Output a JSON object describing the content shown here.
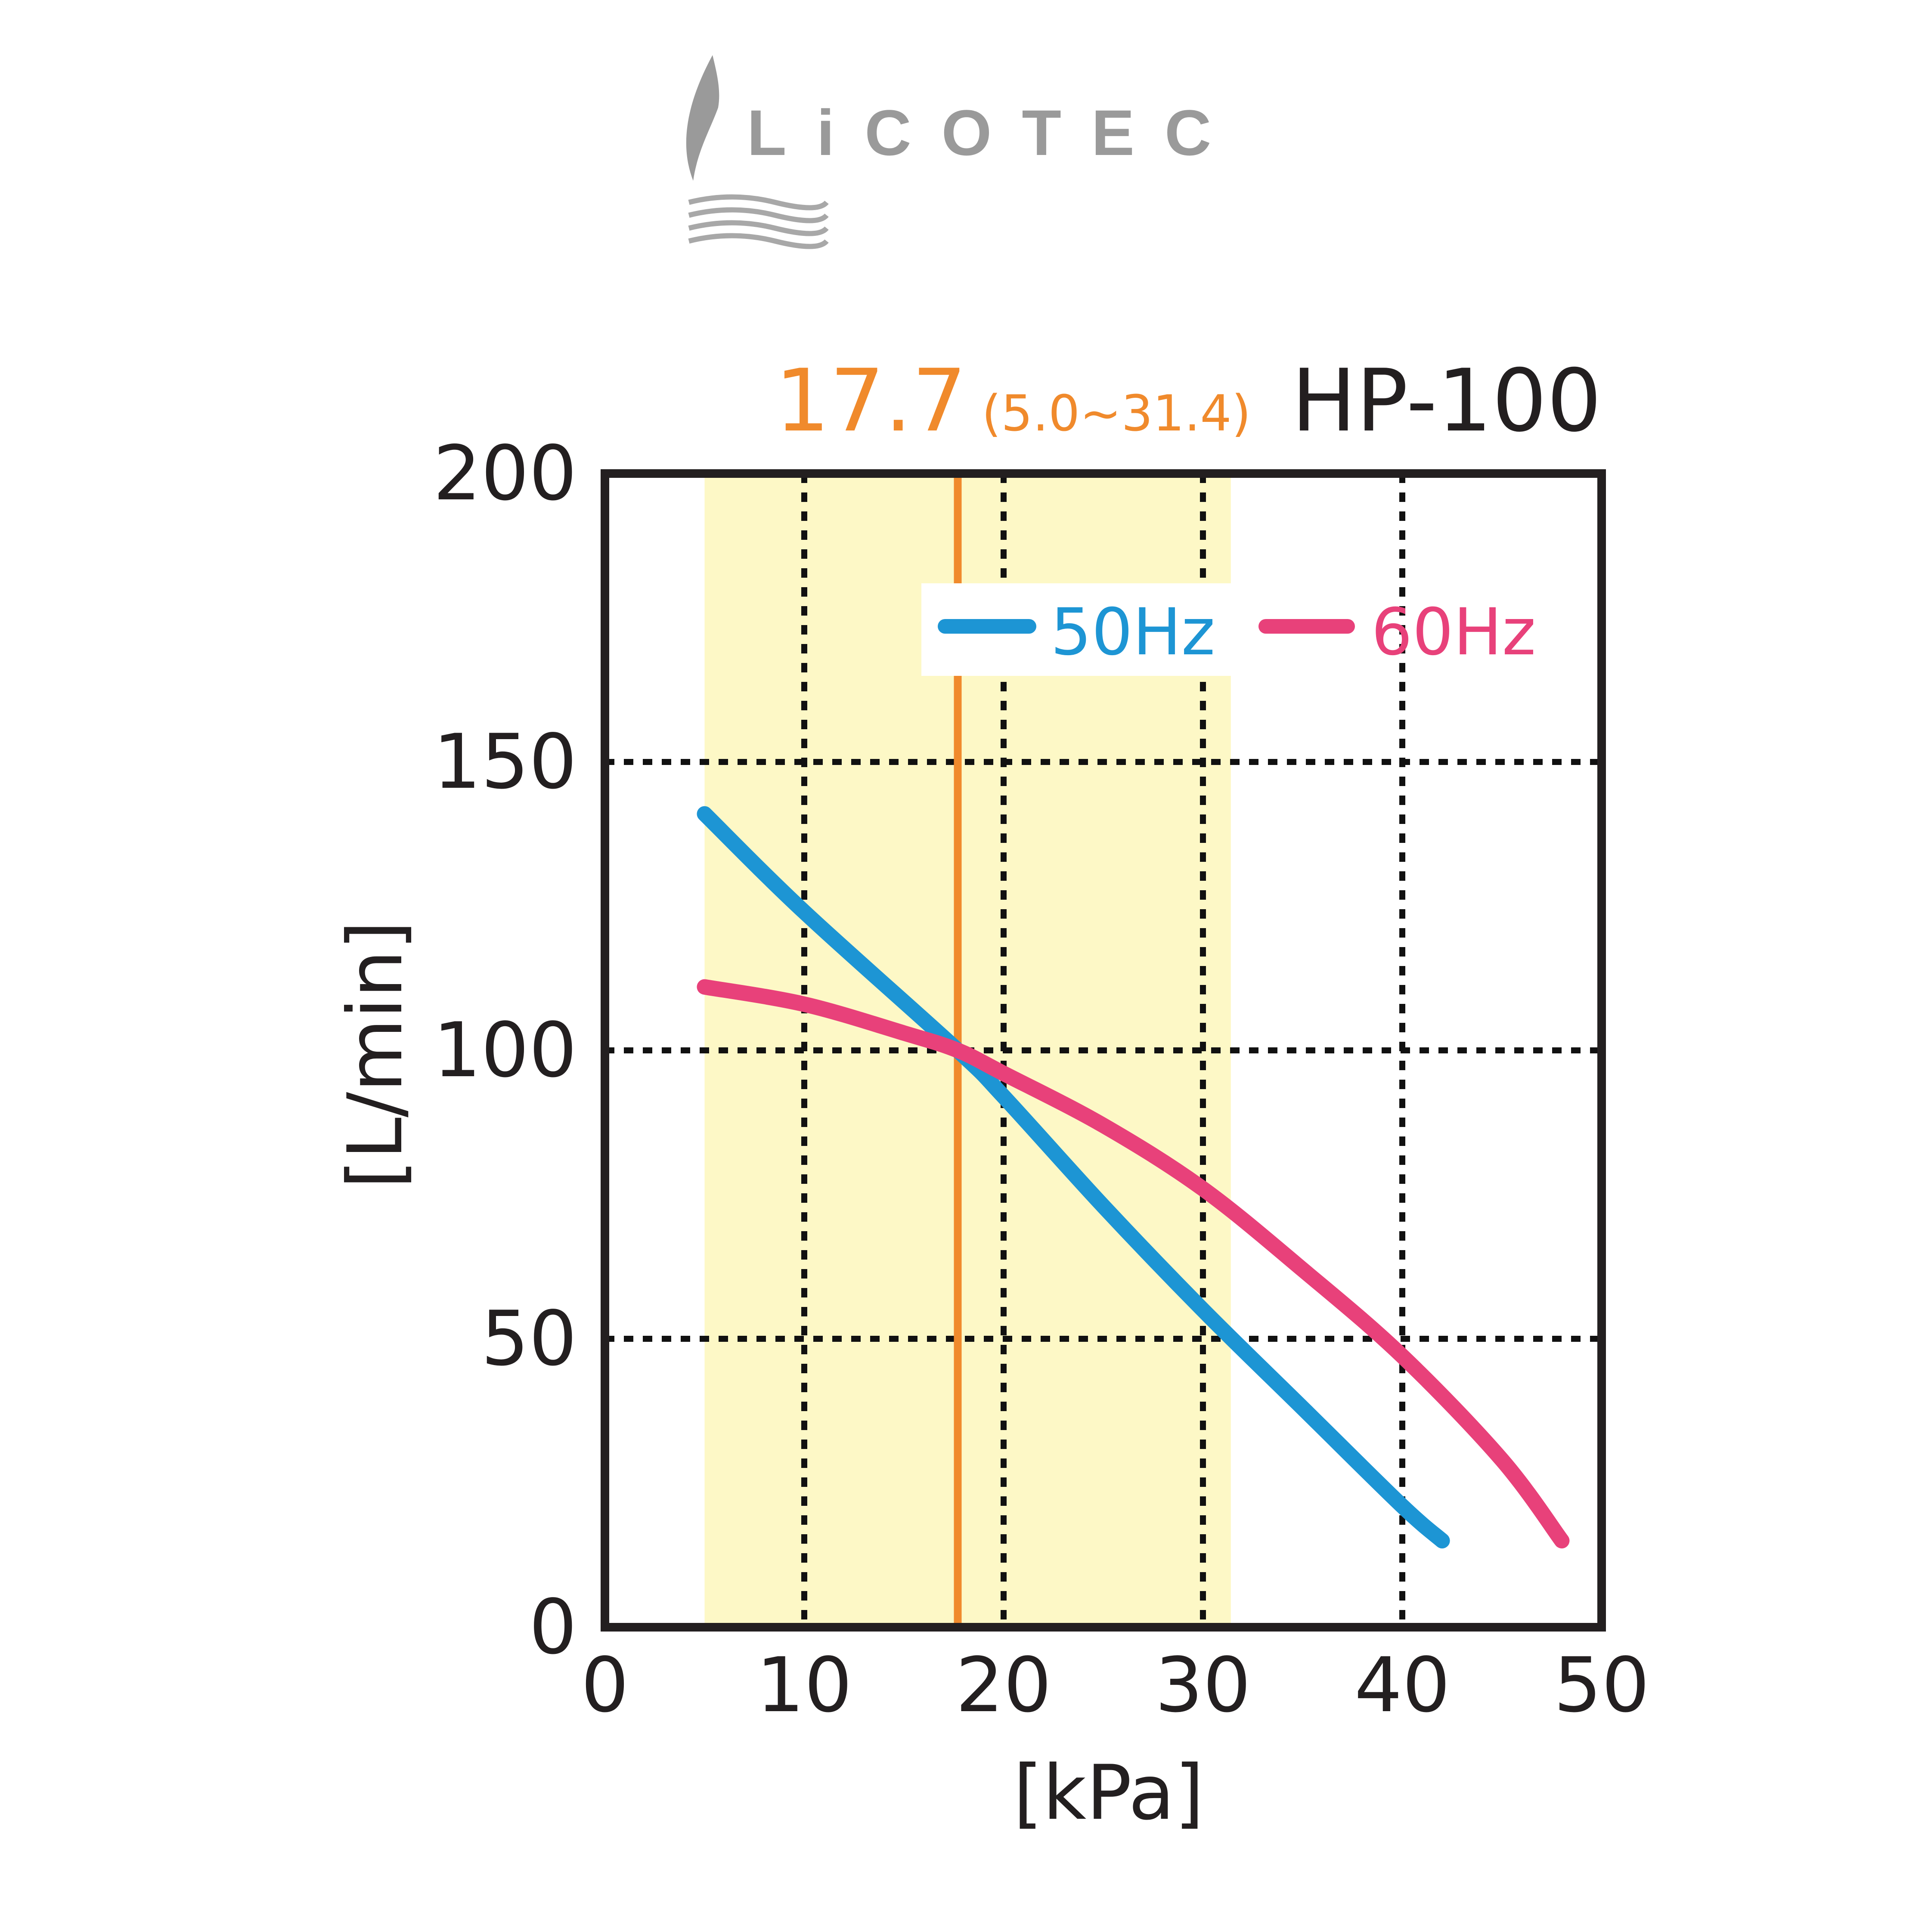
{
  "logo": {
    "text": "LiCOTEC"
  },
  "chart_data": {
    "type": "line",
    "title": "HP-100",
    "xlabel": "[kPa]",
    "ylabel": "[L/min]",
    "xlim": [
      0,
      50
    ],
    "ylim": [
      0,
      200
    ],
    "x_ticks": [
      "0",
      "10",
      "20",
      "30",
      "40",
      "50"
    ],
    "y_ticks": [
      "0",
      "50",
      "100",
      "150",
      "200"
    ],
    "grid": "dashed",
    "legend_position": "top-right",
    "operating_point": {
      "value": 17.7,
      "label": "17.7",
      "range": [
        5.0,
        31.4
      ],
      "range_label": "(5.0~31.4)"
    },
    "series": [
      {
        "name": "50Hz",
        "x": [
          5,
          10,
          17.7,
          20,
          25,
          30,
          35,
          40,
          42
        ],
        "y": [
          141,
          124,
          100,
          92,
          73,
          55,
          38,
          21,
          15
        ]
      },
      {
        "name": "60Hz",
        "x": [
          5,
          10,
          15,
          17.7,
          20,
          25,
          30,
          35,
          40,
          45,
          48
        ],
        "y": [
          111,
          108,
          103,
          100,
          96,
          87,
          76,
          62,
          47,
          29,
          15
        ]
      }
    ],
    "colors": {
      "50Hz": "#1d95d4",
      "60Hz": "#e8417a",
      "operating": "#f08a2c",
      "range_fill": "#fdf8c6",
      "axis": "#231f20"
    }
  }
}
